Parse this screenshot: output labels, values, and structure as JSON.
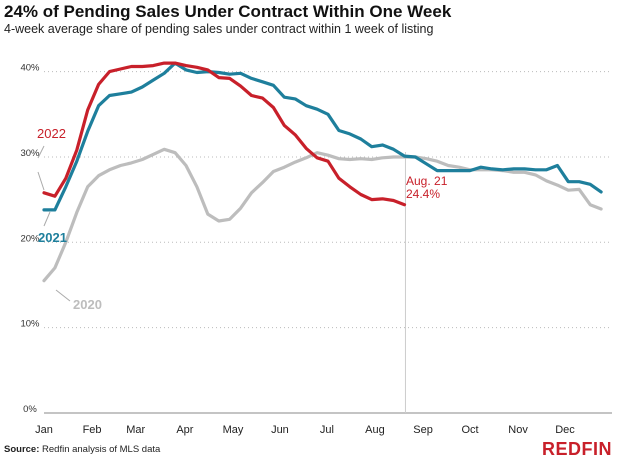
{
  "header": {
    "title": "24% of Pending Sales Under Contract Within One Week",
    "subtitle": "4-week average share of pending sales under contract within 1 week of listing"
  },
  "footer": {
    "source_label": "Source:",
    "source_text": "Redfin analysis of MLS data",
    "logo": "REDFIN"
  },
  "colors": {
    "2022": "#c8202a",
    "2021": "#1e7f9c",
    "2020": "#bdbdbd",
    "annotation_line": "#cccccc"
  },
  "chart_data": {
    "type": "line",
    "title": "24% of Pending Sales Under Contract Within One Week",
    "subtitle": "4-week average share of pending sales under contract within 1 week of listing",
    "xlabel": "",
    "ylabel": "",
    "x_unit": "week of year",
    "x_tick_labels": [
      {
        "label": "Jan",
        "x": 0
      },
      {
        "label": "Feb",
        "x": 4.4
      },
      {
        "label": "Mar",
        "x": 8.4
      },
      {
        "label": "Apr",
        "x": 12.9
      },
      {
        "label": "May",
        "x": 17.3
      },
      {
        "label": "Jun",
        "x": 21.6
      },
      {
        "label": "Jul",
        "x": 25.9
      },
      {
        "label": "Aug",
        "x": 30.3
      },
      {
        "label": "Sep",
        "x": 34.7
      },
      {
        "label": "Oct",
        "x": 39.0
      },
      {
        "label": "Nov",
        "x": 43.4
      },
      {
        "label": "Dec",
        "x": 47.7
      }
    ],
    "xlim": [
      0,
      52
    ],
    "ylim": [
      0,
      0.43
    ],
    "y_ticks": [
      0,
      0.1,
      0.2,
      0.3,
      0.4
    ],
    "y_tick_labels": [
      "0%",
      "10%",
      "20%",
      "30%",
      "40%"
    ],
    "grid": "horizontal dotted",
    "series": [
      {
        "name": "2022",
        "x": [
          0,
          1,
          2,
          3,
          4,
          5,
          6,
          7,
          8,
          9,
          10,
          11,
          12,
          13,
          14,
          15,
          16,
          17,
          18,
          19,
          20,
          21,
          22,
          23,
          24,
          25,
          26,
          27,
          28,
          29,
          30,
          31,
          32,
          33
        ],
        "values": [
          0.258,
          0.254,
          0.275,
          0.308,
          0.355,
          0.385,
          0.4,
          0.403,
          0.406,
          0.406,
          0.407,
          0.41,
          0.41,
          0.407,
          0.405,
          0.402,
          0.393,
          0.392,
          0.383,
          0.372,
          0.369,
          0.358,
          0.337,
          0.326,
          0.31,
          0.299,
          0.295,
          0.275,
          0.265,
          0.256,
          0.25,
          0.251,
          0.249,
          0.244
        ]
      },
      {
        "name": "2021",
        "x": [
          0,
          1,
          2,
          3,
          4,
          5,
          6,
          7,
          8,
          9,
          10,
          11,
          12,
          13,
          14,
          15,
          16,
          17,
          18,
          19,
          20,
          21,
          22,
          23,
          24,
          25,
          26,
          27,
          28,
          29,
          30,
          31,
          32,
          33,
          34,
          35,
          36,
          37,
          38,
          39,
          40,
          41,
          42,
          43,
          44,
          45,
          46,
          47,
          48,
          49,
          50,
          51
        ],
        "values": [
          0.238,
          0.238,
          0.265,
          0.295,
          0.33,
          0.36,
          0.372,
          0.374,
          0.376,
          0.382,
          0.39,
          0.398,
          0.41,
          0.402,
          0.399,
          0.4,
          0.399,
          0.397,
          0.398,
          0.392,
          0.388,
          0.384,
          0.37,
          0.368,
          0.36,
          0.356,
          0.35,
          0.331,
          0.327,
          0.321,
          0.312,
          0.314,
          0.309,
          0.301,
          0.3,
          0.292,
          0.284,
          0.284,
          0.284,
          0.284,
          0.288,
          0.286,
          0.285,
          0.286,
          0.286,
          0.285,
          0.285,
          0.29,
          0.271,
          0.271,
          0.268,
          0.259
        ]
      },
      {
        "name": "2020",
        "x": [
          0,
          1,
          2,
          3,
          4,
          5,
          6,
          7,
          8,
          9,
          10,
          11,
          12,
          13,
          14,
          15,
          16,
          17,
          18,
          19,
          20,
          21,
          22,
          23,
          24,
          25,
          26,
          27,
          28,
          29,
          30,
          31,
          32,
          33,
          34,
          35,
          36,
          37,
          38,
          39,
          40,
          41,
          42,
          43,
          44,
          45,
          46,
          47,
          48,
          49,
          50,
          51
        ],
        "values": [
          0.155,
          0.17,
          0.2,
          0.235,
          0.265,
          0.278,
          0.285,
          0.29,
          0.293,
          0.297,
          0.303,
          0.309,
          0.305,
          0.29,
          0.265,
          0.233,
          0.225,
          0.227,
          0.24,
          0.258,
          0.27,
          0.283,
          0.288,
          0.294,
          0.299,
          0.305,
          0.302,
          0.298,
          0.297,
          0.298,
          0.297,
          0.299,
          0.3,
          0.3,
          0.3,
          0.298,
          0.295,
          0.29,
          0.288,
          0.285,
          0.285,
          0.285,
          0.284,
          0.282,
          0.282,
          0.279,
          0.272,
          0.267,
          0.261,
          0.262,
          0.244,
          0.239
        ]
      }
    ],
    "annotations": {
      "label_2022": "2022",
      "label_2021": "2021",
      "label_2020": "2020",
      "callout_date": "Aug. 21",
      "callout_value": "24.4%",
      "callout_x": 33
    }
  }
}
